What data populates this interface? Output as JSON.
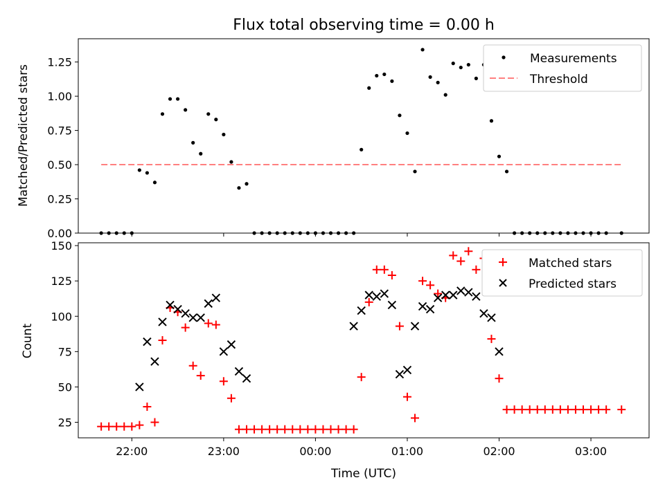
{
  "chart_data": [
    {
      "type": "scatter",
      "title": "Flux total observing time = 0.00 h",
      "ylabel": "Matched/Predicted stars",
      "xlabel": "",
      "xlim": [
        "21:25",
        "03:38"
      ],
      "ylim": [
        0,
        1.42
      ],
      "yticks": [
        "0.00",
        "0.25",
        "0.50",
        "0.75",
        "1.00",
        "1.25"
      ],
      "legend_position": "top-right",
      "legend": [
        "Measurements",
        "Threshold"
      ],
      "threshold": {
        "name": "Threshold",
        "x": [
          "21:40",
          "03:20"
        ],
        "y": 0.5,
        "color": "#ff7f7f"
      },
      "series": [
        {
          "name": "Measurements",
          "marker": "dot",
          "color": "#000000",
          "x": [
            "21:40",
            "21:45",
            "21:50",
            "21:55",
            "22:00",
            "22:05",
            "22:10",
            "22:15",
            "22:20",
            "22:25",
            "22:30",
            "22:35",
            "22:40",
            "22:45",
            "22:50",
            "22:55",
            "23:00",
            "23:05",
            "23:10",
            "23:15",
            "23:20",
            "23:25",
            "23:30",
            "23:35",
            "23:40",
            "23:45",
            "23:50",
            "23:55",
            "00:00",
            "00:05",
            "00:10",
            "00:15",
            "00:20",
            "00:25",
            "00:30",
            "00:35",
            "00:40",
            "00:45",
            "00:50",
            "00:55",
            "01:00",
            "01:05",
            "01:10",
            "01:15",
            "01:20",
            "01:25",
            "01:30",
            "01:35",
            "01:40",
            "01:45",
            "01:50",
            "01:55",
            "02:00",
            "02:05",
            "02:10",
            "02:15",
            "02:20",
            "02:25",
            "02:30",
            "02:35",
            "02:40",
            "02:45",
            "02:50",
            "02:55",
            "03:00",
            "03:05",
            "03:10",
            "03:20"
          ],
          "y": [
            0,
            0,
            0,
            0,
            0,
            0.46,
            0.44,
            0.37,
            0.87,
            0.98,
            0.98,
            0.9,
            0.66,
            0.58,
            0.87,
            0.83,
            0.72,
            0.52,
            0.33,
            0.36,
            0,
            0,
            0,
            0,
            0,
            0,
            0,
            0,
            0,
            0,
            0,
            0,
            0,
            0,
            0.61,
            1.06,
            1.15,
            1.16,
            1.11,
            0.86,
            0.73,
            0.45,
            1.34,
            1.14,
            1.1,
            1.01,
            1.24,
            1.21,
            1.23,
            1.13,
            1.23,
            0.82,
            0.56,
            0.45,
            0,
            0,
            0,
            0,
            0,
            0,
            0,
            0,
            0,
            0,
            0,
            0,
            0,
            0
          ]
        }
      ]
    },
    {
      "type": "scatter",
      "title": "",
      "ylabel": "Count",
      "xlabel": "Time (UTC)",
      "xlim": [
        "21:25",
        "03:38"
      ],
      "ylim": [
        14,
        152
      ],
      "yticks": [
        "25",
        "50",
        "75",
        "100",
        "125",
        "150"
      ],
      "xticks": [
        "22:00",
        "23:00",
        "00:00",
        "01:00",
        "02:00",
        "03:00"
      ],
      "legend_position": "top-right",
      "legend": [
        "Matched stars",
        "Predicted stars"
      ],
      "series": [
        {
          "name": "Matched stars",
          "marker": "plus",
          "color": "#ff0000",
          "x": [
            "21:40",
            "21:45",
            "21:50",
            "21:55",
            "22:00",
            "22:05",
            "22:10",
            "22:15",
            "22:20",
            "22:25",
            "22:30",
            "22:35",
            "22:40",
            "22:45",
            "22:50",
            "22:55",
            "23:00",
            "23:05",
            "23:10",
            "23:15",
            "23:20",
            "23:25",
            "23:30",
            "23:35",
            "23:40",
            "23:45",
            "23:50",
            "23:55",
            "00:00",
            "00:05",
            "00:10",
            "00:15",
            "00:20",
            "00:25",
            "00:30",
            "00:35",
            "00:40",
            "00:45",
            "00:50",
            "00:55",
            "01:00",
            "01:05",
            "01:10",
            "01:15",
            "01:20",
            "01:25",
            "01:30",
            "01:35",
            "01:40",
            "01:45",
            "01:50",
            "01:55",
            "02:00",
            "02:05",
            "02:10",
            "02:15",
            "02:20",
            "02:25",
            "02:30",
            "02:35",
            "02:40",
            "02:45",
            "02:50",
            "02:55",
            "03:00",
            "03:05",
            "03:10",
            "03:20"
          ],
          "y": [
            22,
            22,
            22,
            22,
            22,
            23,
            36,
            25,
            83,
            106,
            103,
            92,
            65,
            58,
            95,
            94,
            54,
            42,
            20,
            20,
            20,
            20,
            20,
            20,
            20,
            20,
            20,
            20,
            20,
            20,
            20,
            20,
            20,
            20,
            57,
            110,
            133,
            133,
            129,
            93,
            43,
            28,
            125,
            122,
            116,
            113,
            143,
            139,
            146,
            133,
            141,
            84,
            56,
            34,
            34,
            34,
            34,
            34,
            34,
            34,
            34,
            34,
            34,
            34,
            34,
            34,
            34,
            34
          ]
        },
        {
          "name": "Predicted stars",
          "marker": "x",
          "color": "#000000",
          "x": [
            "22:05",
            "22:10",
            "22:15",
            "22:20",
            "22:25",
            "22:30",
            "22:35",
            "22:40",
            "22:45",
            "22:50",
            "22:55",
            "23:00",
            "23:05",
            "23:10",
            "23:15",
            "00:25",
            "00:30",
            "00:35",
            "00:40",
            "00:45",
            "00:50",
            "00:55",
            "01:00",
            "01:05",
            "01:10",
            "01:15",
            "01:20",
            "01:25",
            "01:30",
            "01:35",
            "01:40",
            "01:45",
            "01:50",
            "01:55",
            "02:00"
          ],
          "y": [
            50,
            82,
            68,
            96,
            108,
            105,
            102,
            99,
            99,
            109,
            113,
            75,
            80,
            61,
            56,
            93,
            104,
            115,
            114,
            116,
            108,
            59,
            62,
            93,
            107,
            105,
            113,
            115,
            115,
            118,
            117,
            114,
            102,
            99,
            75
          ]
        }
      ]
    }
  ]
}
